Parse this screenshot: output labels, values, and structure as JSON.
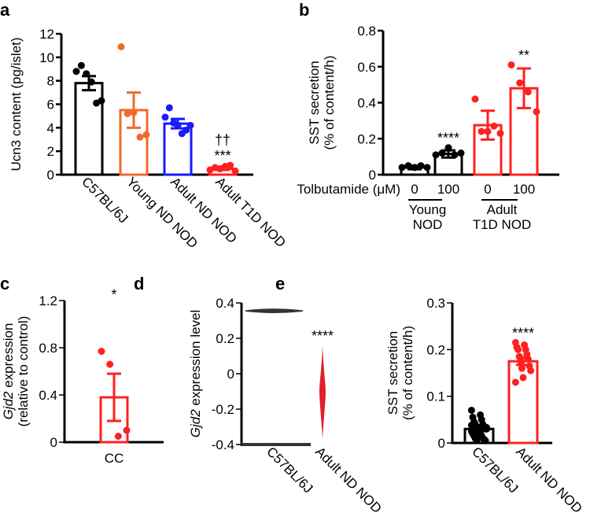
{
  "chart_data": [
    {
      "panel": "a",
      "type": "bar",
      "ylabel": "Ucn3 content (pg/islet)",
      "ylim": [
        0,
        12
      ],
      "yticks": [
        "0",
        "2",
        "4",
        "6",
        "8",
        "10",
        "12"
      ],
      "categories": [
        "C57BL/6J",
        "Young ND NOD",
        "Adult ND NOD",
        "Adult T1D NOD"
      ],
      "colors": [
        "#000000",
        "#f26a2a",
        "#1a1aff",
        "#ff2020"
      ],
      "means": [
        7.8,
        5.5,
        4.35,
        0.5
      ],
      "sem": [
        0.6,
        1.5,
        0.4,
        0.1
      ],
      "points": [
        [
          8.8,
          9.3,
          8.6,
          7.9,
          6.1,
          6.3
        ],
        [
          10.9,
          5.2,
          5.3,
          3.2,
          3.4
        ],
        [
          4.9,
          5.7,
          4.4,
          4.2,
          3.5,
          3.8,
          4.2
        ],
        [
          0.4,
          0.6,
          0.5,
          0.7,
          0.8,
          0.3
        ]
      ],
      "annotations": [
        {
          "category": 3,
          "text": "***"
        },
        {
          "category": 3,
          "text": "††"
        }
      ]
    },
    {
      "panel": "b",
      "type": "bar",
      "ylabel": "SST secretion",
      "ylabel2": "(% of content/h)",
      "ylim": [
        0,
        0.8
      ],
      "yticks": [
        "0",
        "0.2",
        "0.4",
        "0.6",
        "0.8"
      ],
      "xlabel": "Tolbutamide (μM)",
      "categories": [
        "0",
        "100",
        "0",
        "100"
      ],
      "groups": [
        {
          "line1": "Young",
          "line2": "NOD"
        },
        {
          "line1": "Adult",
          "line2": "T1D NOD"
        }
      ],
      "colors": [
        "#000000",
        "#000000",
        "#ff2020",
        "#ff2020"
      ],
      "means": [
        0.04,
        0.115,
        0.275,
        0.48
      ],
      "sem": [
        0.01,
        0.02,
        0.08,
        0.11
      ],
      "points": [
        [
          0.04,
          0.05,
          0.04,
          0.05,
          0.04
        ],
        [
          0.11,
          0.12,
          0.15,
          0.11,
          0.12
        ],
        [
          0.42,
          0.24,
          0.24,
          0.27,
          0.23
        ],
        [
          0.61,
          0.51,
          0.46,
          0.35
        ]
      ],
      "annotations": [
        {
          "category": 1,
          "text": "****"
        },
        {
          "category": 3,
          "text": "**"
        }
      ]
    },
    {
      "panel": "c",
      "type": "bar",
      "ylabel_italic": "Gjd2",
      "ylabel": " expression",
      "ylabel2": "(relative to control)",
      "ylim": [
        0,
        1.2
      ],
      "yticks": [
        "0",
        "0.4",
        "0.8",
        "1.2"
      ],
      "categories": [
        "CC"
      ],
      "colors": [
        "#ff2020"
      ],
      "means": [
        0.38
      ],
      "sem": [
        0.2
      ],
      "points": [
        [
          0.77,
          0.66,
          0.05,
          0.1
        ]
      ],
      "annotations": [
        {
          "category": 0,
          "text": "*"
        }
      ]
    },
    {
      "panel": "d",
      "type": "violin",
      "ylabel_italic": "Gjd2",
      "ylabel": " expression level",
      "ylim": [
        -0.4,
        0.4
      ],
      "yticks": [
        "-0.4",
        "-0.2",
        "0",
        "0.2",
        "0.4"
      ],
      "categories": [
        "C57BL/6J",
        "Adult ND NOD"
      ],
      "colors": [
        "#333333",
        "#e0202a"
      ],
      "violins": [
        {
          "min": 0.35,
          "max": 0.36,
          "median": 0.355
        },
        {
          "min": -0.37,
          "max": 0.16,
          "median": -0.1
        }
      ],
      "annotations": [
        {
          "category": 1,
          "text": "****"
        }
      ]
    },
    {
      "panel": "e",
      "type": "bar",
      "ylabel": "SST secretion",
      "ylabel2": "(% of content/h)",
      "ylim": [
        0,
        0.3
      ],
      "yticks": [
        "0",
        "0.1",
        "0.2",
        "0.3"
      ],
      "categories": [
        "C57BL/6J",
        "Adult ND NOD"
      ],
      "colors": [
        "#000000",
        "#ff2020"
      ],
      "means": [
        0.03,
        0.175
      ],
      "sem": [
        0.003,
        0.008
      ],
      "points": [
        [
          0.07,
          0.06,
          0.055,
          0.05,
          0.045,
          0.04,
          0.04,
          0.035,
          0.035,
          0.03,
          0.03,
          0.03,
          0.025,
          0.025,
          0.02,
          0.02,
          0.015,
          0.015,
          0.01,
          0.01,
          0.008,
          0.005,
          0.005,
          0.028,
          0.033,
          0.022,
          0.038,
          0.012
        ],
        [
          0.215,
          0.21,
          0.205,
          0.2,
          0.2,
          0.19,
          0.185,
          0.18,
          0.175,
          0.165,
          0.16,
          0.155,
          0.14,
          0.13
        ]
      ],
      "annotations": [
        {
          "category": 1,
          "text": "****"
        }
      ]
    }
  ]
}
